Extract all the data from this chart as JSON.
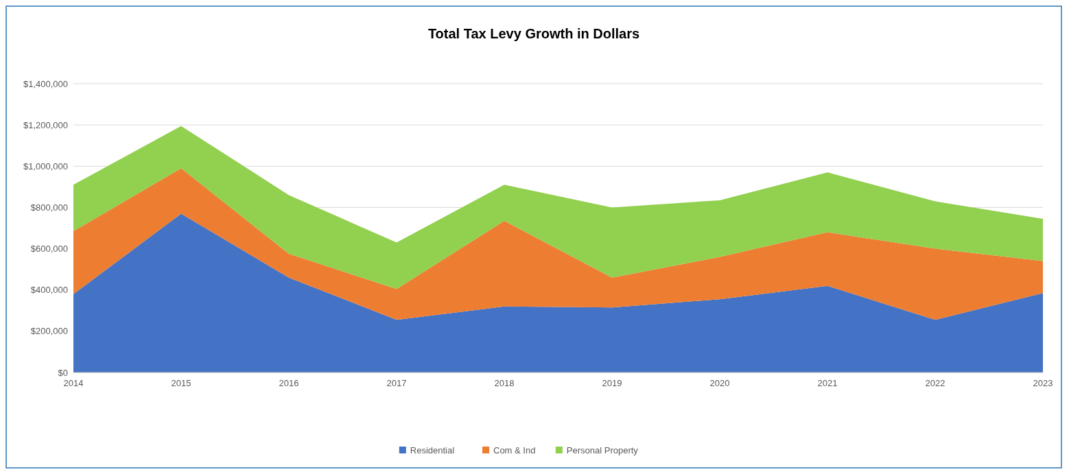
{
  "chart_data": {
    "type": "area",
    "stacked": true,
    "title": "Total Tax Levy Growth in Dollars",
    "categories": [
      "2014",
      "2015",
      "2016",
      "2017",
      "2018",
      "2019",
      "2020",
      "2021",
      "2022",
      "2023"
    ],
    "series": [
      {
        "name": "Residential",
        "color": "#4472c4",
        "values": [
          380000,
          770000,
          460000,
          255000,
          320000,
          315000,
          355000,
          420000,
          255000,
          385000
        ]
      },
      {
        "name": "Com & Ind",
        "color": "#ed7d31",
        "values": [
          305000,
          220000,
          115000,
          150000,
          415000,
          145000,
          205000,
          260000,
          345000,
          155000
        ]
      },
      {
        "name": "Personal Property",
        "color": "#92d050",
        "values": [
          225000,
          205000,
          285000,
          225000,
          175000,
          340000,
          275000,
          290000,
          230000,
          205000
        ]
      }
    ],
    "ylim": [
      0,
      1400000
    ],
    "yticks": [
      {
        "value": 0,
        "label": "$0"
      },
      {
        "value": 200000,
        "label": "$200,000"
      },
      {
        "value": 400000,
        "label": "$400,000"
      },
      {
        "value": 600000,
        "label": "$600,000"
      },
      {
        "value": 800000,
        "label": "$800,000"
      },
      {
        "value": 1000000,
        "label": "$1,000,000"
      },
      {
        "value": 1200000,
        "label": "$1,200,000"
      },
      {
        "value": 1400000,
        "label": "$1,400,000"
      }
    ],
    "grid": "y",
    "legend": "bottom"
  }
}
